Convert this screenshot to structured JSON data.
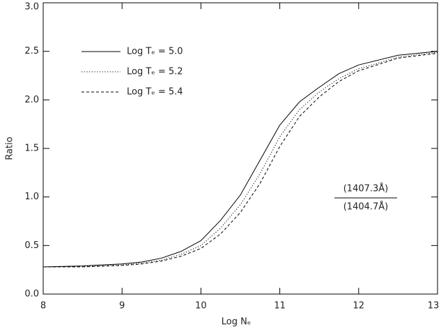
{
  "chart_data": {
    "type": "line",
    "x_label": "Log Nₑ",
    "y_label": "Ratio",
    "annotation": {
      "numerator": "(1407.3Å)",
      "denominator": "(1404.7Å)"
    },
    "x": [
      8,
      8.5,
      9,
      9.25,
      9.5,
      9.75,
      10,
      10.25,
      10.5,
      10.75,
      11,
      11.25,
      11.5,
      11.75,
      12,
      12.5,
      13
    ],
    "series": [
      {
        "name": "Log Tₑ = 5.0",
        "color": "#000000",
        "dash": "solid",
        "values": [
          0.28,
          0.29,
          0.31,
          0.33,
          0.37,
          0.44,
          0.55,
          0.76,
          1.02,
          1.38,
          1.74,
          1.98,
          2.13,
          2.27,
          2.36,
          2.46,
          2.5
        ]
      },
      {
        "name": "Log Tₑ = 5.2",
        "color": "#000000",
        "dash": "dotted",
        "values": [
          0.28,
          0.285,
          0.3,
          0.32,
          0.35,
          0.41,
          0.5,
          0.68,
          0.92,
          1.24,
          1.62,
          1.9,
          2.08,
          2.22,
          2.32,
          2.44,
          2.49
        ]
      },
      {
        "name": "Log Tₑ = 5.4",
        "color": "#000000",
        "dash": "dashed",
        "values": [
          0.28,
          0.28,
          0.295,
          0.31,
          0.34,
          0.39,
          0.47,
          0.62,
          0.84,
          1.14,
          1.52,
          1.83,
          2.03,
          2.19,
          2.3,
          2.43,
          2.48
        ]
      }
    ],
    "xlim": [
      8,
      13
    ],
    "xticks": [
      8,
      9,
      10,
      11,
      12,
      13
    ],
    "ylim": [
      0,
      3
    ],
    "yticks": [
      {
        "value": 0,
        "label": "0.0"
      },
      0.5,
      {
        "value": 1,
        "label": "1.0"
      },
      1.5,
      {
        "value": 2,
        "label": "2.0"
      },
      2.5,
      {
        "value": 3,
        "label": "3.0"
      }
    ],
    "legend": "upper left"
  }
}
